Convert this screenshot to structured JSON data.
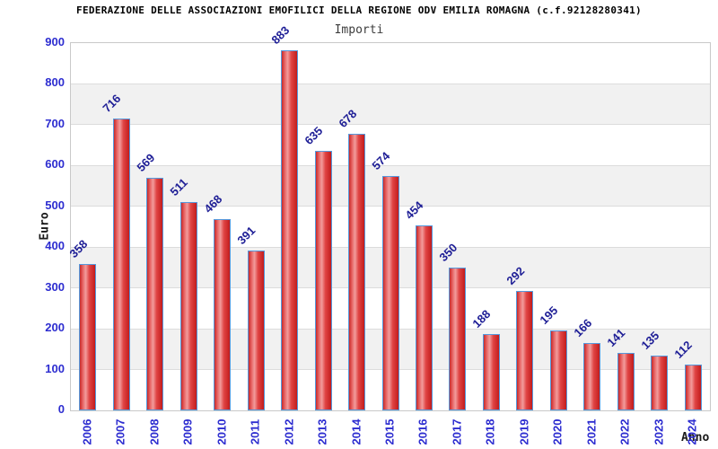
{
  "header": {
    "title": "FEDERAZIONE DELLE ASSOCIAZIONI EMOFILICI DELLA REGIONE ODV EMILIA ROMAGNA (c.f.92128280341)",
    "subtitle": "Importi"
  },
  "chart_data": {
    "type": "bar",
    "title": "Importi",
    "categories": [
      "2006",
      "2007",
      "2008",
      "2009",
      "2010",
      "2011",
      "2012",
      "2013",
      "2014",
      "2015",
      "2016",
      "2017",
      "2018",
      "2019",
      "2020",
      "2021",
      "2022",
      "2023",
      "2024"
    ],
    "values": [
      358,
      716,
      569,
      511,
      468,
      391,
      883,
      635,
      678,
      574,
      454,
      350,
      188,
      292,
      195,
      166,
      141,
      135,
      112
    ],
    "xlabel": "Anno",
    "ylabel": "Euro",
    "ylim": [
      0,
      900
    ],
    "yticks": [
      0,
      100,
      200,
      300,
      400,
      500,
      600,
      700,
      800,
      900
    ],
    "grid": true,
    "legend": "none",
    "band_pattern": "alternating horizontal 100-unit bands",
    "colors": {
      "bar_gradient": [
        "#c62a2a",
        "#e66060",
        "#f29c9c",
        "#e04444",
        "#c21c1c"
      ],
      "bar_border": "#5599dd",
      "axis_tick_label": "#2d2dd0",
      "value_label": "#1e1e96",
      "band": "#f1f1f1",
      "gridline": "#dcdcdc",
      "plot_border": "#c9c9c9",
      "title": "#000000",
      "subtitle": "#3c3c3c",
      "axis_title": "#1a1a1a"
    }
  }
}
